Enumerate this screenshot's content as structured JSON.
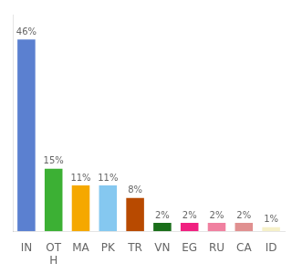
{
  "chart_data": {
    "type": "bar",
    "categories": [
      "IN",
      "OT\nH",
      "MA",
      "PK",
      "TR",
      "VN",
      "EG",
      "RU",
      "CA",
      "ID"
    ],
    "values": [
      46,
      15,
      11,
      11,
      8,
      2,
      2,
      2,
      2,
      1
    ],
    "value_labels": [
      "46%",
      "15%",
      "11%",
      "11%",
      "8%",
      "2%",
      "2%",
      "2%",
      "2%",
      "1%"
    ],
    "data_labels": true,
    "colors": [
      "#5b80d0",
      "#3cb034",
      "#f5a800",
      "#85c8f0",
      "#b84a00",
      "#1a6e1a",
      "#f02080",
      "#f080a0",
      "#e09090",
      "#f5f0c8"
    ],
    "ylim": [
      0,
      52
    ],
    "tick_labels": "x",
    "grid": false
  }
}
